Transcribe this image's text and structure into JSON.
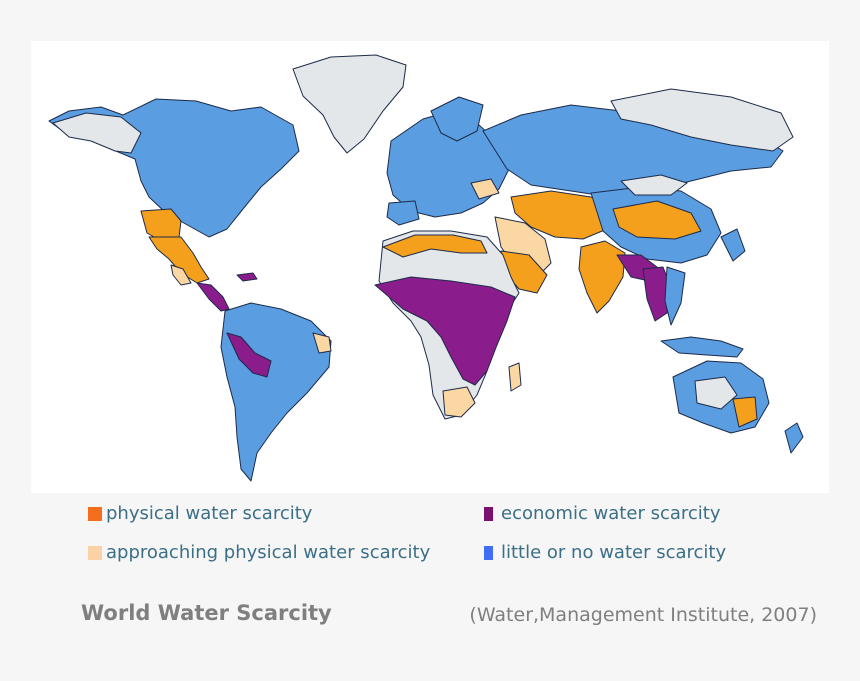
{
  "map": {
    "colors": {
      "physical": "#f5a01c",
      "approaching": "#fbd7a4",
      "economic": "#8b1c8c",
      "little": "#5a9de0",
      "no_data": "#e3e7ea",
      "border": "#1d2b4a"
    }
  },
  "legend": {
    "items": [
      {
        "label": "physical water scarcity",
        "swatch_color": "#f56e1e",
        "swatch_shape": "square"
      },
      {
        "label": "economic water scarcity",
        "swatch_color": "#7a1070",
        "swatch_shape": "tall-rect"
      },
      {
        "label": "approaching physical water scarcity",
        "swatch_color": "#fbd2a6",
        "swatch_shape": "square"
      },
      {
        "label": "little or no water scarcity",
        "swatch_color": "#3f6ef5",
        "swatch_shape": "tall-rect"
      }
    ]
  },
  "caption": {
    "title": "World Water Scarcity",
    "source": "(Water,Management Institute, 2007)"
  }
}
